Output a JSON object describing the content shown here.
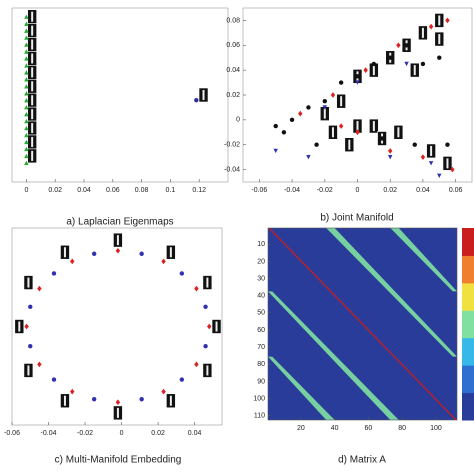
{
  "chart_data": [
    {
      "type": "scatter",
      "title": "a) Laplacian Eigenmaps",
      "xlim": [
        -0.01,
        0.14
      ],
      "xticks": [
        0,
        0.02,
        0.04,
        0.06,
        0.08,
        0.1,
        0.12
      ],
      "ylim": [
        0,
        1
      ],
      "series": [
        {
          "color": "#22aa33",
          "marker": "triangle",
          "x": [
            0,
            0,
            0,
            0,
            0,
            0,
            0,
            0,
            0,
            0,
            0,
            0,
            0,
            0,
            0,
            0,
            0,
            0,
            0,
            0,
            0,
            0
          ],
          "values": [
            0.95,
            0.91,
            0.87,
            0.83,
            0.79,
            0.75,
            0.71,
            0.67,
            0.63,
            0.59,
            0.55,
            0.51,
            0.47,
            0.43,
            0.39,
            0.35,
            0.31,
            0.27,
            0.23,
            0.19,
            0.15,
            0.11
          ]
        },
        {
          "color": "#3030a0",
          "marker": "circle",
          "x": [
            0.118
          ],
          "values": [
            0.47
          ]
        }
      ],
      "thumbnails": {
        "x": [
          0.004,
          0.004,
          0.004,
          0.004,
          0.004,
          0.004,
          0.004,
          0.004,
          0.004,
          0.004,
          0.004,
          0.123
        ],
        "values": [
          0.95,
          0.87,
          0.79,
          0.71,
          0.63,
          0.55,
          0.47,
          0.39,
          0.31,
          0.23,
          0.15,
          0.5
        ]
      }
    },
    {
      "type": "scatter",
      "title": "b) Joint Manifold",
      "xlim": [
        -0.07,
        0.07
      ],
      "xticks": [
        -0.06,
        -0.04,
        -0.02,
        0,
        0.02,
        0.04,
        0.06
      ],
      "ylim": [
        -0.05,
        0.09
      ],
      "yticks": [
        -0.04,
        -0.02,
        0,
        0.02,
        0.04,
        0.06,
        0.08
      ],
      "series": [
        {
          "color": "#111111",
          "marker": "circle",
          "x": [
            -0.05,
            -0.04,
            -0.03,
            -0.02,
            -0.01,
            0,
            0.01,
            0.02,
            0.03,
            0.04,
            0.05,
            0.055,
            -0.045,
            -0.025,
            0.015,
            0.035
          ],
          "values": [
            -0.005,
            0.0,
            0.01,
            0.015,
            0.03,
            0.035,
            0.045,
            0.05,
            0.06,
            0.045,
            0.05,
            -0.02,
            -0.01,
            -0.02,
            -0.015,
            -0.02
          ]
        },
        {
          "color": "#dd2222",
          "marker": "diamond",
          "x": [
            -0.035,
            -0.015,
            0.005,
            0.025,
            0.045,
            0.055,
            0.0,
            0.02,
            0.04,
            0.058,
            -0.01
          ],
          "values": [
            0.005,
            0.02,
            0.04,
            0.06,
            0.075,
            0.08,
            -0.01,
            -0.025,
            -0.03,
            -0.04,
            -0.005
          ]
        },
        {
          "color": "#3030b0",
          "marker": "triangle-down",
          "x": [
            -0.05,
            -0.03,
            -0.02,
            0.0,
            0.02,
            0.03,
            0.045,
            0.05
          ],
          "values": [
            -0.025,
            -0.03,
            0.01,
            0.03,
            -0.03,
            0.045,
            -0.035,
            -0.045
          ]
        }
      ],
      "thumbnails": {
        "x": [
          -0.02,
          -0.01,
          0.0,
          0.01,
          0.02,
          0.03,
          0.04,
          0.05,
          -0.005,
          0.01,
          0.025,
          0.045,
          0.055,
          0.035,
          0.05,
          -0.015,
          0.0,
          0.015
        ],
        "values": [
          0.005,
          0.015,
          0.035,
          0.04,
          0.05,
          0.06,
          0.07,
          0.08,
          -0.02,
          -0.005,
          -0.01,
          -0.025,
          -0.035,
          0.04,
          0.065,
          -0.01,
          -0.005,
          -0.015
        ]
      }
    },
    {
      "type": "scatter",
      "title": "c) Multi-Manifold Embedding",
      "xlim": [
        -0.06,
        0.055
      ],
      "xticks": [
        -0.06,
        -0.04,
        -0.02,
        0,
        0.02,
        0.04
      ],
      "ylim": [
        -0.065,
        0.065
      ],
      "series": [
        {
          "color": "#dd2222",
          "marker": "diamond",
          "x": [
            0.048,
            0.041,
            0.023,
            -0.002,
            -0.027,
            -0.045,
            -0.052,
            -0.045,
            -0.027,
            -0.002,
            0.023,
            0.041
          ],
          "values": [
            0,
            0.025,
            0.043,
            0.05,
            0.043,
            0.025,
            0,
            -0.025,
            -0.043,
            -0.05,
            -0.043,
            -0.025
          ]
        },
        {
          "color": "#3030b0",
          "marker": "circle",
          "x": [
            0.046,
            0.033,
            0.011,
            -0.015,
            -0.037,
            -0.05,
            -0.05,
            -0.037,
            -0.015,
            0.011,
            0.033,
            0.046
          ],
          "values": [
            0.013,
            0.035,
            0.048,
            0.048,
            0.035,
            0.013,
            -0.013,
            -0.035,
            -0.048,
            -0.048,
            -0.035,
            -0.013
          ]
        }
      ],
      "thumbnails": {
        "x": [
          0.052,
          0.047,
          0.027,
          -0.002,
          -0.031,
          -0.051,
          -0.056,
          -0.051,
          -0.031,
          -0.002,
          0.027,
          0.047
        ],
        "values": [
          0,
          0.029,
          0.049,
          0.057,
          0.049,
          0.029,
          0,
          -0.029,
          -0.049,
          -0.057,
          -0.049,
          -0.029
        ]
      }
    },
    {
      "type": "heatmap",
      "title": "d) Matrix A",
      "xlim": [
        0.5,
        112.5
      ],
      "xticks": [
        20,
        40,
        60,
        80,
        100
      ],
      "ylim": [
        0.5,
        112.5
      ],
      "yticks": [
        10,
        20,
        30,
        40,
        50,
        60,
        70,
        80,
        90,
        100,
        110
      ],
      "background": 0,
      "clim": [
        0,
        1
      ],
      "colormap": [
        "#2a3c9a",
        "#2f6fd0",
        "#36b8e8",
        "#7fe0a0",
        "#f0e040",
        "#f08030",
        "#c81e1e"
      ],
      "bands": [
        {
          "offset": 0,
          "value": 1
        },
        {
          "offset": 37,
          "value": 0.55
        },
        {
          "offset": -37,
          "value": 0.55
        },
        {
          "offset": 75,
          "value": 0.55
        },
        {
          "offset": -75,
          "value": 0.55
        }
      ]
    }
  ]
}
